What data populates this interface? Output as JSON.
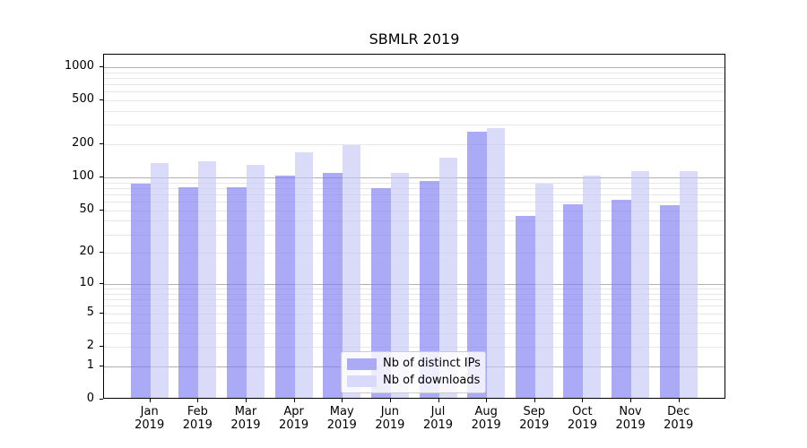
{
  "chart_data": {
    "type": "bar",
    "title": "SBMLR 2019",
    "categories": [
      "Jan",
      "Feb",
      "Mar",
      "Apr",
      "May",
      "Jun",
      "Jul",
      "Aug",
      "Sep",
      "Oct",
      "Nov",
      "Dec"
    ],
    "category_sub_label": "2019",
    "series": [
      {
        "name": "Nb of distinct IPs",
        "color": "#aaaaf7",
        "bar_fill": "rgba(124,124,243,0.65)",
        "values": [
          87,
          81,
          82,
          104,
          110,
          80,
          92,
          260,
          44,
          57,
          63,
          56
        ]
      },
      {
        "name": "Nb of downloads",
        "color": "#d9d9f9",
        "bar_fill": "rgba(198,198,246,0.65)",
        "values": [
          135,
          140,
          130,
          170,
          196,
          109,
          151,
          281,
          88,
          104,
          114,
          114
        ]
      }
    ],
    "yscale": "log1p",
    "ylim": [
      0,
      1294
    ],
    "yticks_labeled": [
      0,
      1,
      2,
      5,
      10,
      20,
      50,
      100,
      200,
      500,
      1000
    ],
    "yticks_major_grid": [
      1,
      10,
      100,
      1000
    ],
    "yticks_minor_grid": [
      2,
      3,
      4,
      5,
      6,
      7,
      8,
      9,
      20,
      30,
      40,
      50,
      60,
      70,
      80,
      90,
      200,
      300,
      400,
      500,
      600,
      700,
      800,
      900
    ],
    "grid": true,
    "legend_position": "inside-bottom-center",
    "colors": {
      "grid_major": "#b0b0b0",
      "grid_minor": "#e7e7e7",
      "spine": "#000000",
      "text": "#000000",
      "background": "#ffffff",
      "legend_border": "#cccccc",
      "legend_bg": "rgba(255,255,255,0.8)"
    }
  }
}
